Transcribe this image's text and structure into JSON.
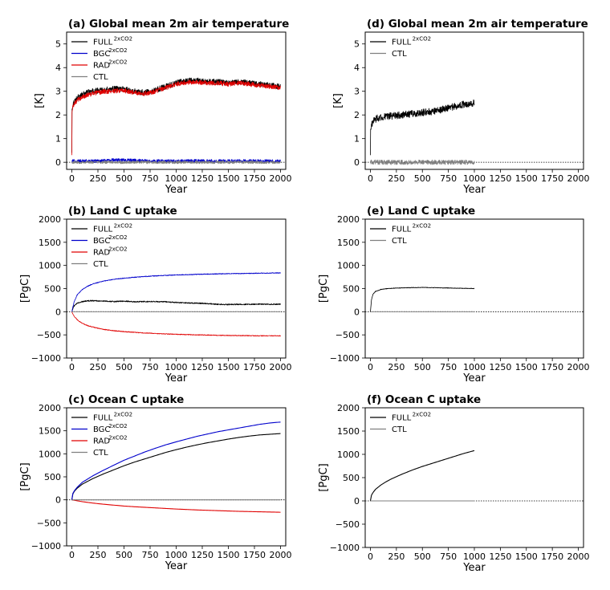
{
  "chart_data": [
    {
      "type": "line",
      "panel": "a",
      "title": "(a) Global mean 2m  air temperature",
      "xlabel": "Year",
      "ylabel": "[K]",
      "xlim": [
        -50,
        2050
      ],
      "ylim": [
        -0.3,
        5.5
      ],
      "xticks": [
        0,
        250,
        500,
        750,
        1000,
        1250,
        1500,
        1750,
        2000
      ],
      "yticks": [
        0,
        1,
        2,
        3,
        4,
        5
      ],
      "xtick_labels": [
        "0",
        "250",
        "500",
        "750",
        "1000",
        "1250",
        "1500",
        "1750",
        "2000"
      ],
      "ytick_labels": [
        "0",
        "1",
        "2",
        "3",
        "4",
        "5"
      ],
      "zero_line": true,
      "legend_position": "upper-left",
      "series": [
        {
          "name": "FULL",
          "sup": "2xCO2",
          "color": "#000000",
          "noise": 0.12,
          "x": [
            0,
            2,
            10,
            30,
            60,
            100,
            150,
            200,
            300,
            400,
            500,
            600,
            700,
            800,
            900,
            1000,
            1100,
            1200,
            1300,
            1400,
            1500,
            1600,
            1700,
            1800,
            1900,
            2000
          ],
          "y": [
            0.4,
            2.2,
            2.45,
            2.6,
            2.75,
            2.85,
            2.95,
            3.0,
            3.05,
            3.1,
            3.1,
            3.0,
            2.95,
            3.05,
            3.2,
            3.35,
            3.45,
            3.45,
            3.4,
            3.4,
            3.35,
            3.4,
            3.35,
            3.3,
            3.25,
            3.2
          ]
        },
        {
          "name": "BGC",
          "sup": "2xCO2",
          "color": "#0000cc",
          "noise": 0.07,
          "x": [
            0,
            200,
            400,
            600,
            800,
            1000,
            1200,
            1400,
            1600,
            1800,
            2000
          ],
          "y": [
            0.05,
            0.05,
            0.1,
            0.08,
            0.05,
            0.05,
            0.06,
            0.05,
            0.06,
            0.05,
            0.05
          ]
        },
        {
          "name": "RAD",
          "sup": "2xCO2",
          "color": "#e00000",
          "noise": 0.1,
          "x": [
            0,
            2,
            10,
            30,
            60,
            100,
            150,
            200,
            300,
            400,
            500,
            600,
            700,
            800,
            900,
            1000,
            1100,
            1200,
            1300,
            1400,
            1500,
            1600,
            1700,
            1800,
            1900,
            2000
          ],
          "y": [
            0.3,
            2.1,
            2.35,
            2.5,
            2.65,
            2.75,
            2.85,
            2.9,
            2.98,
            3.02,
            3.02,
            2.95,
            2.9,
            3.0,
            3.15,
            3.3,
            3.38,
            3.38,
            3.35,
            3.35,
            3.3,
            3.35,
            3.3,
            3.25,
            3.2,
            3.15
          ]
        },
        {
          "name": "CTL",
          "sup": "",
          "color": "#7f7f7f",
          "noise": 0.06,
          "x": [
            0,
            2000
          ],
          "y": [
            0.0,
            0.0
          ]
        }
      ]
    },
    {
      "type": "line",
      "panel": "b",
      "title": "(b) Land C uptake",
      "xlabel": "Year",
      "ylabel": "[PgC]",
      "xlim": [
        -50,
        2050
      ],
      "ylim": [
        -1000,
        2000
      ],
      "xticks": [
        0,
        250,
        500,
        750,
        1000,
        1250,
        1500,
        1750,
        2000
      ],
      "yticks": [
        -1000,
        -500,
        0,
        500,
        1000,
        1500,
        2000
      ],
      "xtick_labels": [
        "0",
        "250",
        "500",
        "750",
        "1000",
        "1250",
        "1500",
        "1750",
        "2000"
      ],
      "ytick_labels": [
        "−1000",
        "−500",
        "0",
        "500",
        "1000",
        "1500",
        "2000"
      ],
      "zero_line": true,
      "legend_position": "upper-left",
      "series": [
        {
          "name": "FULL",
          "sup": "2xCO2",
          "color": "#000000",
          "noise": 12,
          "x": [
            0,
            20,
            50,
            100,
            150,
            200,
            300,
            400,
            500,
            600,
            700,
            800,
            900,
            1000,
            1100,
            1200,
            1300,
            1400,
            1500,
            1600,
            1700,
            1800,
            1900,
            2000
          ],
          "y": [
            0,
            120,
            180,
            220,
            235,
            240,
            230,
            220,
            230,
            215,
            220,
            220,
            215,
            200,
            190,
            185,
            175,
            160,
            155,
            160,
            160,
            165,
            160,
            165
          ]
        },
        {
          "name": "BGC",
          "sup": "2xCO2",
          "color": "#0000cc",
          "noise": 8,
          "x": [
            0,
            20,
            50,
            100,
            150,
            200,
            300,
            400,
            500,
            600,
            700,
            800,
            900,
            1000,
            1100,
            1200,
            1300,
            1400,
            1500,
            1600,
            1700,
            1800,
            1900,
            2000
          ],
          "y": [
            0,
            200,
            360,
            480,
            550,
            600,
            660,
            700,
            725,
            745,
            760,
            775,
            785,
            795,
            800,
            808,
            812,
            818,
            822,
            825,
            828,
            832,
            836,
            840
          ]
        },
        {
          "name": "RAD",
          "sup": "2xCO2",
          "color": "#e00000",
          "noise": 8,
          "x": [
            0,
            20,
            50,
            100,
            150,
            200,
            300,
            400,
            500,
            600,
            700,
            800,
            900,
            1000,
            1100,
            1200,
            1300,
            1400,
            1500,
            1600,
            1700,
            1800,
            1900,
            2000
          ],
          "y": [
            0,
            -90,
            -170,
            -250,
            -300,
            -330,
            -380,
            -410,
            -430,
            -445,
            -460,
            -470,
            -480,
            -488,
            -495,
            -500,
            -505,
            -510,
            -512,
            -515,
            -518,
            -520,
            -520,
            -520
          ]
        },
        {
          "name": "CTL",
          "sup": "",
          "color": "#7f7f7f",
          "noise": 3,
          "x": [
            0,
            2000
          ],
          "y": [
            0,
            0
          ]
        }
      ]
    },
    {
      "type": "line",
      "panel": "c",
      "title": "(c) Ocean C uptake",
      "xlabel": "Year",
      "ylabel": "[PgC]",
      "xlim": [
        -50,
        2050
      ],
      "ylim": [
        -1000,
        2000
      ],
      "xticks": [
        0,
        250,
        500,
        750,
        1000,
        1250,
        1500,
        1750,
        2000
      ],
      "yticks": [
        -1000,
        -500,
        0,
        500,
        1000,
        1500,
        2000
      ],
      "xtick_labels": [
        "0",
        "250",
        "500",
        "750",
        "1000",
        "1250",
        "1500",
        "1750",
        "2000"
      ],
      "ytick_labels": [
        "−1000",
        "−500",
        "0",
        "500",
        "1000",
        "1500",
        "2000"
      ],
      "zero_line": true,
      "legend_position": "upper-left",
      "series": [
        {
          "name": "FULL",
          "sup": "2xCO2",
          "color": "#000000",
          "noise": 0,
          "x": [
            0,
            10,
            25,
            50,
            100,
            150,
            200,
            300,
            400,
            500,
            600,
            700,
            800,
            900,
            1000,
            1100,
            1200,
            1300,
            1400,
            1500,
            1600,
            1700,
            1800,
            1900,
            2000
          ],
          "y": [
            0,
            130,
            190,
            250,
            340,
            400,
            460,
            560,
            650,
            740,
            820,
            890,
            960,
            1030,
            1090,
            1145,
            1195,
            1240,
            1280,
            1320,
            1355,
            1385,
            1410,
            1425,
            1440
          ]
        },
        {
          "name": "BGC",
          "sup": "2xCO2",
          "color": "#0000cc",
          "noise": 0,
          "x": [
            0,
            10,
            25,
            50,
            100,
            150,
            200,
            300,
            400,
            500,
            600,
            700,
            800,
            900,
            1000,
            1100,
            1200,
            1300,
            1400,
            1500,
            1600,
            1700,
            1800,
            1900,
            2000
          ],
          "y": [
            0,
            140,
            200,
            270,
            380,
            450,
            520,
            640,
            750,
            860,
            950,
            1040,
            1120,
            1195,
            1260,
            1320,
            1380,
            1430,
            1480,
            1520,
            1560,
            1600,
            1640,
            1670,
            1690
          ]
        },
        {
          "name": "RAD",
          "sup": "2xCO2",
          "color": "#e00000",
          "noise": 0,
          "x": [
            0,
            25,
            50,
            100,
            200,
            300,
            400,
            500,
            600,
            800,
            1000,
            1200,
            1400,
            1600,
            1800,
            2000
          ],
          "y": [
            0,
            -10,
            -20,
            -40,
            -70,
            -95,
            -115,
            -135,
            -150,
            -175,
            -200,
            -220,
            -235,
            -250,
            -260,
            -270
          ]
        },
        {
          "name": "CTL",
          "sup": "",
          "color": "#7f7f7f",
          "noise": 0,
          "x": [
            0,
            2000
          ],
          "y": [
            0,
            0
          ]
        }
      ]
    },
    {
      "type": "line",
      "panel": "d",
      "title": "(d) Global mean 2m  air temperature",
      "xlabel": "Year",
      "ylabel": "[K]",
      "xlim": [
        -50,
        2050
      ],
      "ylim": [
        -0.3,
        5.5
      ],
      "xticks": [
        0,
        250,
        500,
        750,
        1000,
        1250,
        1500,
        1750,
        2000
      ],
      "yticks": [
        0,
        1,
        2,
        3,
        4,
        5
      ],
      "xtick_labels": [
        "0",
        "250",
        "500",
        "750",
        "1000",
        "1250",
        "1500",
        "1750",
        "2000"
      ],
      "ytick_labels": [
        "0",
        "1",
        "2",
        "3",
        "4",
        "5"
      ],
      "zero_line": true,
      "legend_position": "upper-left",
      "series": [
        {
          "name": "FULL",
          "sup": "2xCO2",
          "color": "#000000",
          "noise": 0.15,
          "x": [
            0,
            2,
            10,
            30,
            60,
            100,
            200,
            300,
            400,
            500,
            600,
            700,
            800,
            900,
            1000
          ],
          "y": [
            0.3,
            1.3,
            1.6,
            1.75,
            1.85,
            1.9,
            1.95,
            2.0,
            2.05,
            2.1,
            2.15,
            2.25,
            2.35,
            2.45,
            2.5
          ]
        },
        {
          "name": "CTL",
          "sup": "",
          "color": "#7f7f7f",
          "noise": 0.1,
          "x": [
            0,
            1000
          ],
          "y": [
            0.0,
            0.0
          ]
        }
      ]
    },
    {
      "type": "line",
      "panel": "e",
      "title": "(e) Land C uptake",
      "xlabel": "Year",
      "ylabel": "[PgC]",
      "xlim": [
        -50,
        2050
      ],
      "ylim": [
        -1000,
        2000
      ],
      "xticks": [
        0,
        250,
        500,
        750,
        1000,
        1250,
        1500,
        1750,
        2000
      ],
      "yticks": [
        -1000,
        -500,
        0,
        500,
        1000,
        1500,
        2000
      ],
      "xtick_labels": [
        "0",
        "250",
        "500",
        "750",
        "1000",
        "1250",
        "1500",
        "1750",
        "2000"
      ],
      "ytick_labels": [
        "−1000",
        "−500",
        "0",
        "500",
        "1000",
        "1500",
        "2000"
      ],
      "zero_line": true,
      "legend_position": "upper-left",
      "series": [
        {
          "name": "FULL",
          "sup": "2xCO2",
          "color": "#000000",
          "noise": 6,
          "x": [
            0,
            10,
            25,
            50,
            100,
            150,
            200,
            300,
            400,
            500,
            600,
            700,
            800,
            900,
            1000
          ],
          "y": [
            0,
            250,
            380,
            440,
            480,
            495,
            505,
            515,
            520,
            525,
            520,
            515,
            510,
            505,
            500
          ]
        },
        {
          "name": "CTL",
          "sup": "",
          "color": "#7f7f7f",
          "noise": 3,
          "x": [
            0,
            1000
          ],
          "y": [
            0,
            0
          ]
        }
      ]
    },
    {
      "type": "line",
      "panel": "f",
      "title": "(f) Ocean C uptake",
      "xlabel": "Year",
      "ylabel": "[PgC]",
      "xlim": [
        -50,
        2050
      ],
      "ylim": [
        -1000,
        2000
      ],
      "xticks": [
        0,
        250,
        500,
        750,
        1000,
        1250,
        1500,
        1750,
        2000
      ],
      "yticks": [
        -1000,
        -500,
        0,
        500,
        1000,
        1500,
        2000
      ],
      "xtick_labels": [
        "0",
        "250",
        "500",
        "750",
        "1000",
        "1250",
        "1500",
        "1750",
        "2000"
      ],
      "ytick_labels": [
        "−1000",
        "−500",
        "0",
        "500",
        "1000",
        "1500",
        "2000"
      ],
      "zero_line": true,
      "legend_position": "upper-left",
      "series": [
        {
          "name": "FULL",
          "sup": "2xCO2",
          "color": "#000000",
          "noise": 0,
          "x": [
            0,
            10,
            25,
            50,
            100,
            150,
            200,
            300,
            400,
            500,
            600,
            700,
            800,
            900,
            1000
          ],
          "y": [
            0,
            120,
            180,
            250,
            340,
            410,
            470,
            570,
            660,
            740,
            810,
            880,
            950,
            1020,
            1080
          ]
        },
        {
          "name": "CTL",
          "sup": "",
          "color": "#7f7f7f",
          "noise": 0,
          "x": [
            0,
            1000
          ],
          "y": [
            0,
            0
          ]
        }
      ]
    }
  ]
}
